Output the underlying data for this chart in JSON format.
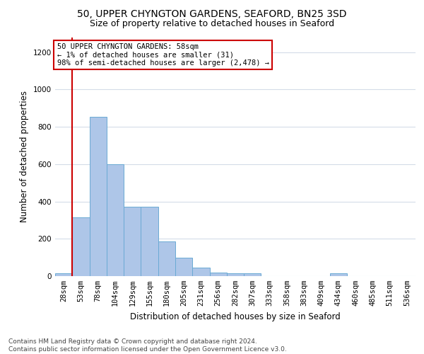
{
  "title_line1": "50, UPPER CHYNGTON GARDENS, SEAFORD, BN25 3SD",
  "title_line2": "Size of property relative to detached houses in Seaford",
  "xlabel": "Distribution of detached houses by size in Seaford",
  "ylabel": "Number of detached properties",
  "categories": [
    "28sqm",
    "53sqm",
    "78sqm",
    "104sqm",
    "129sqm",
    "155sqm",
    "180sqm",
    "205sqm",
    "231sqm",
    "256sqm",
    "282sqm",
    "307sqm",
    "333sqm",
    "358sqm",
    "383sqm",
    "409sqm",
    "434sqm",
    "460sqm",
    "485sqm",
    "511sqm",
    "536sqm"
  ],
  "values": [
    15,
    315,
    855,
    600,
    370,
    370,
    185,
    100,
    45,
    20,
    15,
    15,
    0,
    0,
    0,
    0,
    15,
    0,
    0,
    0,
    0
  ],
  "bar_color": "#aec6e8",
  "bar_edge_color": "#6aaad4",
  "vline_color": "#cc0000",
  "vline_x_index": 1,
  "annotation_text": "50 UPPER CHYNGTON GARDENS: 58sqm\n← 1% of detached houses are smaller (31)\n98% of semi-detached houses are larger (2,478) →",
  "annotation_box_color": "#ffffff",
  "annotation_box_edge_color": "#cc0000",
  "ylim": [
    0,
    1280
  ],
  "yticks": [
    0,
    200,
    400,
    600,
    800,
    1000,
    1200
  ],
  "footer_text": "Contains HM Land Registry data © Crown copyright and database right 2024.\nContains public sector information licensed under the Open Government Licence v3.0.",
  "bg_color": "#ffffff",
  "grid_color": "#d4dce8",
  "title_fontsize": 10,
  "subtitle_fontsize": 9,
  "axis_label_fontsize": 8.5,
  "tick_fontsize": 7.5,
  "footer_fontsize": 6.5,
  "annot_fontsize": 7.5
}
